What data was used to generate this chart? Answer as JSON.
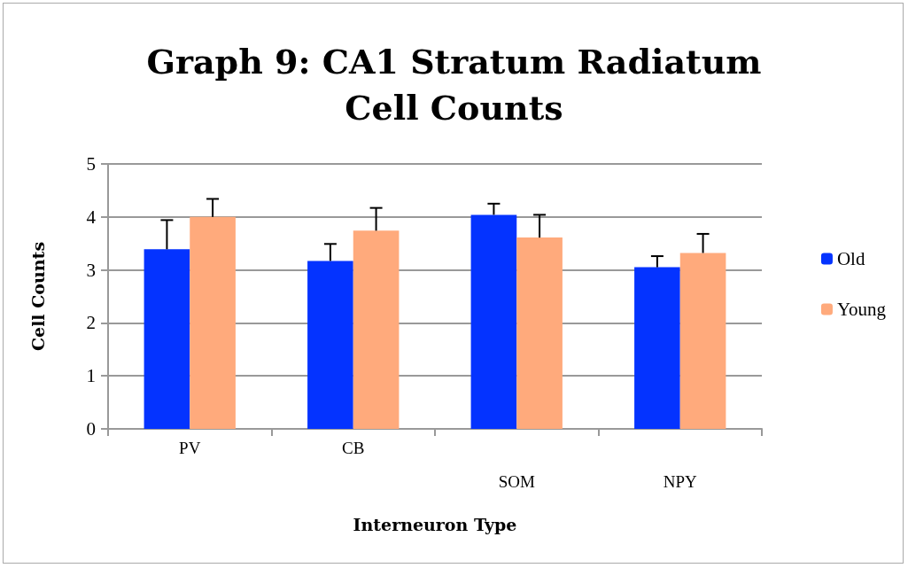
{
  "chart_data": {
    "type": "bar",
    "title": "Graph 9: CA1 Stratum Radiatum\nCell Counts",
    "xlabel": "Interneuron Type",
    "ylabel": "Cell Counts",
    "categories": [
      "PV",
      "CB",
      "SOM",
      "NPY"
    ],
    "series": [
      {
        "name": "Old",
        "color": "#0433ff",
        "values": [
          3.39,
          3.17,
          4.04,
          3.05
        ],
        "errors": [
          [
            3.39,
            3.94
          ],
          [
            3.17,
            3.49
          ],
          [
            4.04,
            4.25
          ],
          [
            3.05,
            3.26
          ]
        ]
      },
      {
        "name": "Young",
        "color": "#ffaa7c",
        "values": [
          4.0,
          3.74,
          3.61,
          3.32
        ],
        "errors": [
          [
            4.0,
            4.34
          ],
          [
            3.74,
            4.17
          ],
          [
            3.61,
            4.04
          ],
          [
            3.32,
            3.68
          ]
        ]
      }
    ],
    "ylim": [
      0,
      5
    ],
    "yticks": [
      0,
      1,
      2,
      3,
      4,
      5
    ],
    "grid": "y",
    "legend": "right"
  }
}
